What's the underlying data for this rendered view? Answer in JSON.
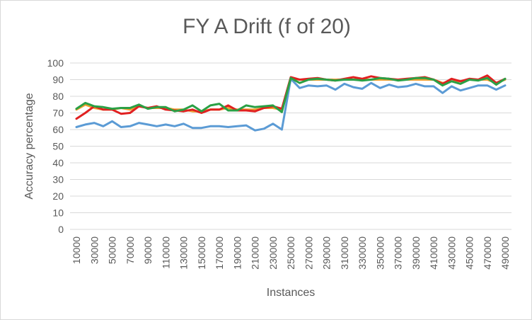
{
  "chart_data": {
    "type": "line",
    "title": "FY A Drift (f of 20)",
    "xlabel": "Instances",
    "ylabel": "Accuracy percentage",
    "ylim": [
      0,
      100
    ],
    "yticks": [
      0,
      10,
      20,
      30,
      40,
      50,
      60,
      70,
      80,
      90,
      100
    ],
    "grid": true,
    "legend": "none",
    "x": [
      10000,
      20000,
      30000,
      40000,
      50000,
      60000,
      70000,
      80000,
      90000,
      100000,
      110000,
      120000,
      130000,
      140000,
      150000,
      160000,
      170000,
      180000,
      190000,
      200000,
      210000,
      220000,
      230000,
      240000,
      250000,
      260000,
      270000,
      280000,
      290000,
      300000,
      310000,
      320000,
      330000,
      340000,
      350000,
      360000,
      370000,
      380000,
      390000,
      400000,
      410000,
      420000,
      430000,
      440000,
      450000,
      460000,
      470000,
      480000,
      490000
    ],
    "xtick_labels": [
      "10000",
      "30000",
      "50000",
      "70000",
      "90000",
      "110000",
      "130000",
      "150000",
      "170000",
      "190000",
      "210000",
      "230000",
      "250000",
      "270000",
      "290000",
      "310000",
      "330000",
      "350000",
      "370000",
      "390000",
      "410000",
      "430000",
      "450000",
      "470000",
      "490000"
    ],
    "series": [
      {
        "color": "#f0a030",
        "values": [
          72,
          75,
          73,
          72,
          72,
          73,
          72,
          74,
          73,
          73,
          73,
          72,
          72,
          71,
          71,
          72,
          72,
          73,
          72,
          72,
          72,
          73,
          73,
          72,
          91,
          90,
          90,
          90,
          90,
          90,
          90,
          90,
          90,
          90,
          90,
          90,
          90,
          90,
          90,
          90,
          90,
          88,
          89,
          89,
          90,
          90,
          90,
          88,
          90
        ]
      },
      {
        "color": "#5b9bd5",
        "values": [
          61.5,
          63,
          64,
          62,
          65,
          61.5,
          62,
          64,
          63,
          62,
          63,
          62,
          63.5,
          61,
          61,
          62,
          62,
          61.5,
          62,
          62.5,
          59.5,
          60.5,
          63.5,
          60,
          90.5,
          85,
          86.5,
          86,
          86.5,
          84,
          87.5,
          85.5,
          84.5,
          88,
          85,
          87,
          85.5,
          86,
          87.5,
          86,
          86,
          82,
          86,
          83.5,
          85,
          86.5,
          86.5,
          84,
          86.5
        ]
      },
      {
        "color": "#e02020",
        "values": [
          66.5,
          70,
          74,
          72,
          72,
          69.5,
          70,
          74,
          73,
          74,
          72,
          71.5,
          71,
          72,
          70,
          72,
          72,
          74.5,
          71.5,
          71.5,
          71,
          73,
          74,
          72.5,
          91.5,
          90,
          90.5,
          91,
          90,
          89.5,
          90.5,
          91.5,
          90.5,
          92,
          91,
          90.5,
          90,
          90.5,
          91,
          91.5,
          90,
          87.5,
          90.5,
          89,
          90.5,
          90,
          92.5,
          88,
          90.5
        ]
      },
      {
        "color": "#2aa045",
        "values": [
          72.5,
          76,
          74,
          73.5,
          72.5,
          73,
          73,
          75,
          72.5,
          73.5,
          73.5,
          71,
          72,
          74.5,
          71,
          74.5,
          75.5,
          71.5,
          71.5,
          74.5,
          73.5,
          74,
          74.5,
          70.5,
          91,
          88,
          90,
          90.5,
          90,
          89.5,
          90,
          90,
          89.5,
          90,
          91,
          90.5,
          89.5,
          90,
          91,
          91,
          90,
          86.5,
          89,
          87.5,
          90,
          89.5,
          91,
          87,
          90.5
        ]
      }
    ]
  }
}
